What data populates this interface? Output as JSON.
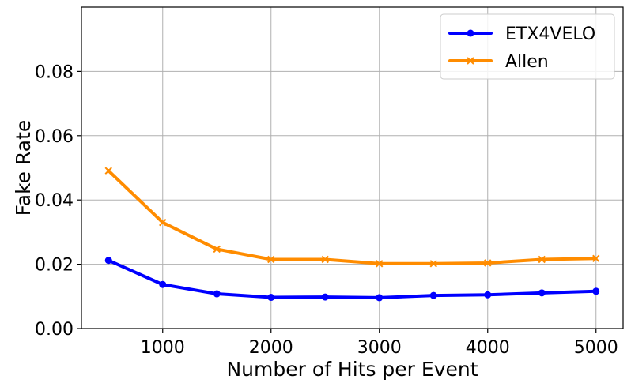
{
  "chart_data": {
    "type": "line",
    "title": "",
    "xlabel": "Number of Hits per Event",
    "ylabel": "Fake Rate",
    "xlim": [
      250,
      5250
    ],
    "ylim": [
      0,
      0.1
    ],
    "x_ticks": [
      1000,
      2000,
      3000,
      4000,
      5000
    ],
    "y_ticks": [
      0.0,
      0.02,
      0.04,
      0.06,
      0.08
    ],
    "x_tick_labels": [
      "1000",
      "2000",
      "3000",
      "4000",
      "5000"
    ],
    "y_tick_labels": [
      "0.00",
      "0.02",
      "0.04",
      "0.06",
      "0.08"
    ],
    "grid": true,
    "legend_position": "top-right",
    "x": [
      500,
      1000,
      1500,
      2000,
      2500,
      3000,
      3500,
      4000,
      4500,
      5000
    ],
    "series": [
      {
        "name": "ETX4VELO",
        "color": "#0000ff",
        "marker": "circle",
        "values": [
          0.0212,
          0.0137,
          0.0108,
          0.0097,
          0.0098,
          0.0096,
          0.0103,
          0.0105,
          0.0111,
          0.0116
        ]
      },
      {
        "name": "Allen",
        "color": "#ff8c00",
        "marker": "x",
        "values": [
          0.0491,
          0.033,
          0.0247,
          0.0215,
          0.0215,
          0.0202,
          0.0202,
          0.0204,
          0.0215,
          0.0218
        ]
      }
    ]
  }
}
